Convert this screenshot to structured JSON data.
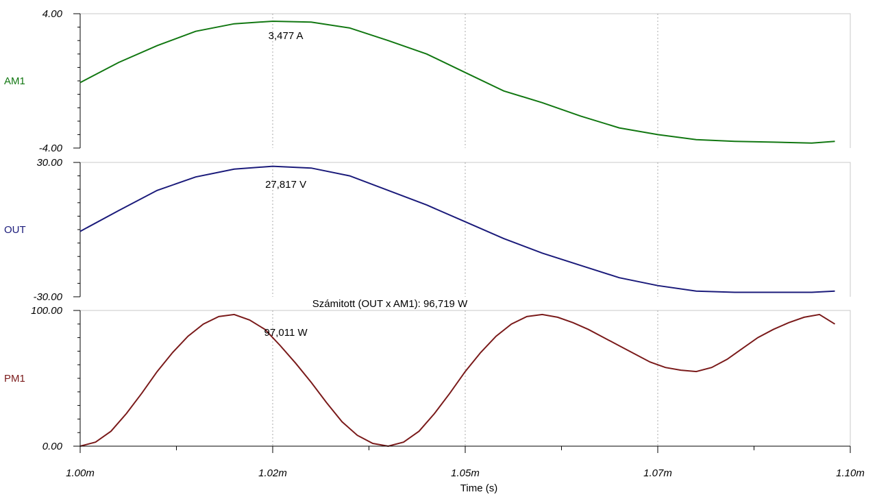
{
  "chart_data": [
    {
      "type": "line",
      "trace_label": "AM1",
      "color": "#117711",
      "ylim": [
        -4,
        4
      ],
      "ytick_labels": [
        "4.00",
        "-4.00"
      ],
      "marker_label": "3,477 A",
      "marker_x": 1.0267,
      "series": [
        {
          "x": [
            1.0,
            1.005,
            1.01,
            1.015,
            1.02,
            1.025,
            1.03,
            1.035,
            1.04,
            1.045,
            1.05,
            1.055,
            1.06,
            1.065,
            1.07,
            1.075,
            1.08,
            1.085,
            1.09,
            1.095,
            1.098
          ],
          "y": [
            -0.1,
            1.1,
            2.1,
            2.95,
            3.4,
            3.55,
            3.5,
            3.15,
            2.4,
            1.6,
            0.5,
            -0.6,
            -1.3,
            -2.1,
            -2.8,
            -3.2,
            -3.5,
            -3.6,
            -3.65,
            -3.7,
            -3.6
          ]
        }
      ]
    },
    {
      "type": "line",
      "trace_label": "OUT",
      "color": "#1a1a7a",
      "ylim": [
        -30,
        30
      ],
      "ytick_labels": [
        "30.00",
        "-30.00"
      ],
      "marker_label": "27,817 V",
      "marker_x": 1.0267,
      "series": [
        {
          "x": [
            1.0,
            1.005,
            1.01,
            1.015,
            1.02,
            1.025,
            1.03,
            1.035,
            1.04,
            1.045,
            1.05,
            1.055,
            1.06,
            1.065,
            1.07,
            1.075,
            1.08,
            1.085,
            1.09,
            1.095,
            1.098
          ],
          "y": [
            -0.8,
            8.5,
            17.5,
            23.5,
            27.0,
            28.3,
            27.5,
            24.0,
            17.5,
            11.0,
            3.5,
            -4.0,
            -10.5,
            -16.0,
            -21.5,
            -25.0,
            -27.5,
            -28.0,
            -28.0,
            -28.0,
            -27.5
          ]
        }
      ]
    },
    {
      "type": "line",
      "trace_label": "PM1",
      "color": "#7a1a1a",
      "ylim": [
        0,
        100
      ],
      "ytick_labels": [
        "100.00",
        "0.00"
      ],
      "title": "Számitott (OUT x AM1): 96,719 W",
      "marker_label": "97,011 W",
      "marker_x": 1.0267,
      "series": [
        {
          "x": [
            1.0,
            1.002,
            1.004,
            1.006,
            1.008,
            1.01,
            1.012,
            1.014,
            1.016,
            1.018,
            1.02,
            1.022,
            1.024,
            1.026,
            1.028,
            1.03,
            1.032,
            1.034,
            1.036,
            1.038,
            1.04,
            1.042,
            1.044,
            1.046,
            1.048,
            1.05,
            1.052,
            1.054,
            1.056,
            1.058,
            1.06,
            1.062,
            1.064,
            1.066,
            1.068,
            1.07,
            1.072,
            1.074,
            1.076,
            1.078,
            1.08,
            1.082,
            1.084,
            1.086,
            1.088,
            1.09,
            1.092,
            1.094,
            1.096,
            1.098
          ],
          "y": [
            0,
            3,
            11,
            24,
            39,
            55,
            69,
            81,
            90,
            95.5,
            97,
            93,
            86,
            74,
            61,
            47,
            32,
            18,
            8,
            2,
            0,
            3,
            11,
            24,
            39,
            55,
            69,
            81,
            90,
            95.5,
            97,
            95,
            91,
            86,
            80,
            74,
            68,
            62,
            58,
            56,
            55,
            58,
            64,
            72,
            80,
            86,
            91,
            95,
            97,
            90
          ]
        }
      ]
    }
  ],
  "x_axis": {
    "label": "Time (s)",
    "xlim": [
      1.0,
      1.1
    ],
    "tick_values": [
      1.0,
      1.025,
      1.05,
      1.075,
      1.1
    ],
    "tick_labels": [
      "1.00m",
      "1.02m",
      "1.05m",
      "1.07m",
      "1.10m"
    ],
    "grid": true
  }
}
